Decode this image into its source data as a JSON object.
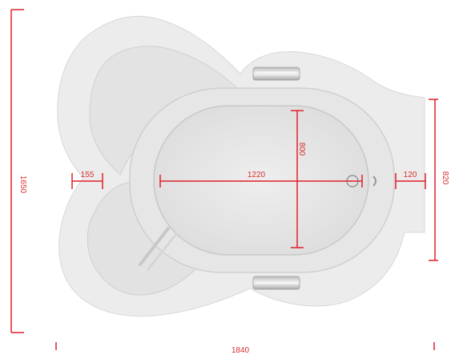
{
  "colors": {
    "dimension": "#e0202a",
    "label": "#d83030",
    "tub_fill": "#ededed",
    "basin_fill": "#e4e4e4",
    "outline": "#d4d4d4"
  },
  "dimensions": {
    "overall_height": "1650",
    "overall_width": "1840",
    "right_height": "820",
    "inner_length": "1220",
    "inner_width": "800",
    "left_rim": "155",
    "right_rim": "120"
  }
}
